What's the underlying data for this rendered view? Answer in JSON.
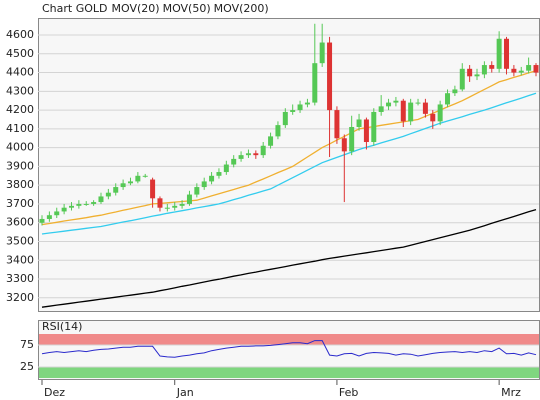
{
  "chart_data": [
    {
      "type": "candlestick",
      "title": "Chart GOLD",
      "title_color": "#dd3333",
      "categories": [
        "Dez",
        null,
        null,
        null,
        null,
        null,
        null,
        null,
        null,
        null,
        null,
        null,
        null,
        null,
        null,
        null,
        null,
        null,
        "Jan",
        null,
        null,
        null,
        null,
        null,
        null,
        null,
        null,
        null,
        null,
        null,
        null,
        null,
        null,
        null,
        null,
        null,
        null,
        null,
        null,
        null,
        "Feb",
        null,
        null,
        null,
        null,
        null,
        null,
        null,
        null,
        null,
        null,
        null,
        null,
        null,
        null,
        null,
        null,
        null,
        null,
        null,
        null,
        null,
        "Mrz",
        null,
        null,
        null,
        null,
        null
      ],
      "open": [
        3600,
        3620,
        3640,
        3660,
        3680,
        3690,
        3700,
        3700,
        3710,
        3740,
        3760,
        3790,
        3810,
        3820,
        3850,
        3830,
        3730,
        3680,
        3680,
        3690,
        3700,
        3750,
        3790,
        3820,
        3850,
        3870,
        3910,
        3940,
        3960,
        3970,
        3960,
        4010,
        4060,
        4120,
        4190,
        4200,
        4230,
        4240,
        4450,
        4560,
        4200,
        4050,
        3980,
        4110,
        4150,
        4030,
        4190,
        4220,
        4240,
        4250,
        4140,
        4240,
        4240,
        4180,
        4140,
        4230,
        4290,
        4310,
        4420,
        4380,
        4390,
        4440,
        4420,
        4580,
        4420,
        4400,
        4410,
        4440
      ],
      "high": [
        3640,
        3660,
        3680,
        3700,
        3710,
        3720,
        3715,
        3720,
        3760,
        3780,
        3810,
        3830,
        3840,
        3870,
        3860,
        3840,
        3740,
        3700,
        3710,
        3720,
        3770,
        3810,
        3840,
        3870,
        3890,
        3930,
        3960,
        3980,
        3990,
        3985,
        4030,
        4080,
        4140,
        4210,
        4230,
        4250,
        4260,
        4660,
        4660,
        4590,
        4220,
        4070,
        4170,
        4180,
        4160,
        4210,
        4280,
        4260,
        4270,
        4260,
        4260,
        4260,
        4260,
        4200,
        4250,
        4310,
        4330,
        4450,
        4440,
        4420,
        4460,
        4460,
        4620,
        4590,
        4440,
        4430,
        4480,
        4450
      ],
      "low": [
        3585,
        3605,
        3625,
        3645,
        3665,
        3675,
        3690,
        3690,
        3700,
        3725,
        3745,
        3775,
        3800,
        3810,
        3840,
        3680,
        3660,
        3660,
        3665,
        3675,
        3690,
        3735,
        3775,
        3805,
        3835,
        3855,
        3895,
        3925,
        3945,
        3940,
        3945,
        3995,
        4045,
        4105,
        4175,
        4185,
        4215,
        4225,
        4430,
        3950,
        4020,
        3710,
        3960,
        4090,
        3990,
        4010,
        4170,
        4200,
        4220,
        4110,
        4120,
        4225,
        4160,
        4100,
        4120,
        4215,
        4275,
        4300,
        4350,
        4360,
        4370,
        4400,
        4400,
        4390,
        4380,
        4385,
        4395,
        4380
      ],
      "close": [
        3620,
        3640,
        3660,
        3680,
        3690,
        3700,
        3700,
        3710,
        3740,
        3760,
        3790,
        3810,
        3820,
        3850,
        3850,
        3730,
        3680,
        3680,
        3690,
        3700,
        3750,
        3790,
        3820,
        3850,
        3870,
        3910,
        3940,
        3960,
        3970,
        3960,
        4010,
        4060,
        4120,
        4190,
        4200,
        4230,
        4240,
        4450,
        4560,
        4200,
        4050,
        3980,
        4110,
        4150,
        4030,
        4190,
        4220,
        4240,
        4250,
        4140,
        4240,
        4240,
        4180,
        4140,
        4230,
        4290,
        4310,
        4420,
        4380,
        4390,
        4440,
        4420,
        4580,
        4420,
        4400,
        4410,
        4440,
        4400
      ],
      "up_color": "#55c855",
      "down_color": "#dd3333",
      "series": [
        {
          "name": "MOV(20)",
          "color": "#f0b030",
          "values": [
            3590,
            3596,
            3602,
            3609,
            3615,
            3621,
            3627,
            3634,
            3640,
            3649,
            3657,
            3666,
            3674,
            3683,
            3691,
            3700,
            3703,
            3706,
            3710,
            3713,
            3716,
            3720,
            3731,
            3743,
            3754,
            3766,
            3777,
            3789,
            3800,
            3817,
            3833,
            3850,
            3867,
            3883,
            3900,
            3925,
            3950,
            3975,
            4000,
            4020,
            4040,
            4060,
            4080,
            4100,
            4106,
            4112,
            4119,
            4125,
            4131,
            4137,
            4144,
            4150,
            4167,
            4183,
            4200,
            4217,
            4233,
            4250,
            4270,
            4290,
            4310,
            4330,
            4350,
            4362,
            4374,
            4386,
            4398,
            4410
          ]
        },
        {
          "name": "MOV(50)",
          "color": "#33ccee",
          "values": [
            3540,
            3545,
            3550,
            3555,
            3560,
            3565,
            3570,
            3575,
            3580,
            3588,
            3596,
            3604,
            3611,
            3619,
            3627,
            3635,
            3642,
            3650,
            3657,
            3664,
            3671,
            3679,
            3686,
            3693,
            3700,
            3711,
            3723,
            3734,
            3746,
            3757,
            3769,
            3780,
            3800,
            3820,
            3840,
            3860,
            3880,
            3900,
            3920,
            3934,
            3948,
            3962,
            3976,
            3990,
            4002,
            4013,
            4025,
            4037,
            4048,
            4060,
            4074,
            4088,
            4102,
            4116,
            4130,
            4142,
            4153,
            4165,
            4177,
            4188,
            4200,
            4213,
            4226,
            4239,
            4251,
            4264,
            4277,
            4290
          ]
        },
        {
          "name": "MOV(200)",
          "color": "#000000",
          "values": [
            3150,
            3155,
            3161,
            3166,
            3171,
            3177,
            3182,
            3187,
            3193,
            3198,
            3203,
            3209,
            3214,
            3219,
            3225,
            3230,
            3238,
            3245,
            3253,
            3261,
            3268,
            3276,
            3284,
            3292,
            3299,
            3307,
            3315,
            3322,
            3330,
            3337,
            3345,
            3352,
            3359,
            3366,
            3374,
            3381,
            3388,
            3395,
            3403,
            3410,
            3416,
            3422,
            3428,
            3434,
            3440,
            3446,
            3452,
            3458,
            3464,
            3470,
            3480,
            3490,
            3500,
            3510,
            3520,
            3530,
            3540,
            3550,
            3560,
            3572,
            3584,
            3597,
            3609,
            3621,
            3633,
            3646,
            3658,
            3670
          ]
        }
      ],
      "ylim": [
        3135,
        4680
      ],
      "yticks": [
        3200,
        3300,
        3400,
        3500,
        3600,
        3700,
        3800,
        3900,
        4000,
        4100,
        4200,
        4300,
        4400,
        4500,
        4600
      ],
      "grid": true
    },
    {
      "type": "line",
      "title": "RSI(14)",
      "color": "#2a2acc",
      "values": [
        55,
        58,
        60,
        58,
        60,
        62,
        60,
        63,
        65,
        66,
        68,
        70,
        70,
        72,
        72,
        72,
        50,
        48,
        47,
        50,
        52,
        55,
        57,
        62,
        65,
        68,
        70,
        72,
        72,
        73,
        73,
        74,
        76,
        78,
        80,
        80,
        78,
        85,
        85,
        52,
        50,
        55,
        56,
        50,
        56,
        58,
        57,
        56,
        52,
        55,
        54,
        50,
        53,
        56,
        58,
        59,
        60,
        58,
        60,
        58,
        62,
        60,
        68,
        55,
        56,
        52,
        57,
        53
      ],
      "bands": [
        {
          "from": 75,
          "to": 100,
          "color": "#f08a8a"
        },
        {
          "from": 0,
          "to": 25,
          "color": "#7fd67f"
        }
      ],
      "ylim": [
        0,
        100
      ],
      "yticks": [
        25,
        75
      ]
    }
  ]
}
